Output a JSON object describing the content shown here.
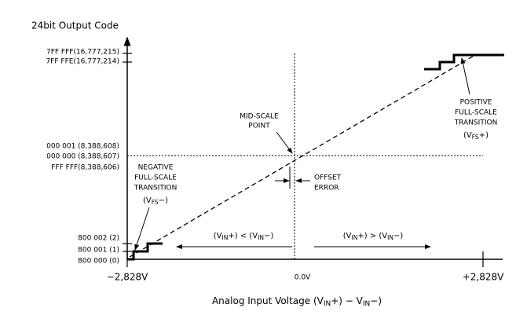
{
  "y_axis_title": "24bit Output Code",
  "y_labels": [
    "7FF FFF(16,777,215)",
    "7FF FFE(16,777,214)",
    "000 001 (8,388,608)",
    "000 000 (8,388,607)",
    "FFF FFF(8,388,606)",
    "800 002 (2)",
    "800 001 (1)",
    "800 000 (0)"
  ],
  "x_labels": [
    "−2,828V",
    "0.0V",
    "+2,828V"
  ],
  "x_axis_title": [
    "Analog Input Voltage (V",
    "IN",
    "+) − V",
    "IN",
    "−)"
  ],
  "annotations": {
    "mid_scale": [
      "MID-SCALE",
      "POINT"
    ],
    "offset_error": [
      "OFFSET",
      "ERROR"
    ],
    "negative": [
      "NEGATIVE",
      "FULL-SCALE",
      "TRANSITION"
    ],
    "negative_symbol": [
      "(V",
      "FS",
      "−)"
    ],
    "positive": [
      "POSITIVE",
      "FULL-SCALE",
      "TRANSITION"
    ],
    "positive_symbol": [
      "(V",
      "FS",
      "+)"
    ]
  },
  "ranges": {
    "left": [
      "(V",
      "IN",
      "+) < (V",
      "IN",
      "−)"
    ],
    "right": [
      "(V",
      "IN",
      "+) > (V",
      "IN",
      "−)"
    ]
  }
}
